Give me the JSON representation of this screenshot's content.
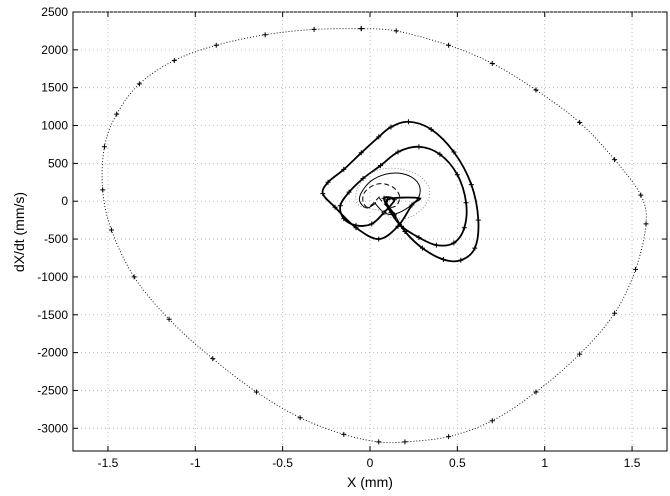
{
  "chart_data": {
    "type": "line",
    "title": "",
    "xlabel": "X (mm)",
    "ylabel": "dX/dt  (mm/s)",
    "xlim": [
      -1.7,
      1.7
    ],
    "ylim": [
      -3300,
      2500
    ],
    "xticks": [
      -1.5,
      -1,
      -0.5,
      0,
      0.5,
      1,
      1.5
    ],
    "xtick_labels": [
      "-1.5",
      "-1",
      "-0.5",
      "0",
      "0.5",
      "1",
      "1.5"
    ],
    "yticks": [
      -3000,
      -2500,
      -2000,
      -1500,
      -1000,
      -500,
      0,
      500,
      1000,
      1500,
      2000,
      2500
    ],
    "ytick_labels": [
      "-3000",
      "-2500",
      "-2000",
      "-1500",
      "-1000",
      "-500",
      "0",
      "500",
      "1000",
      "1500",
      "2000",
      "2500"
    ],
    "grid": true,
    "legend": "none",
    "series": [
      {
        "style": "dotted-line-plus-markers",
        "x": [
          -0.05,
          0.15,
          0.45,
          0.7,
          0.95,
          1.2,
          1.4,
          1.55,
          1.58,
          1.52,
          1.4,
          1.2,
          0.95,
          0.7,
          0.45,
          0.2,
          0.05,
          -0.15,
          -0.4,
          -0.65,
          -0.9,
          -1.15,
          -1.35,
          -1.48,
          -1.53,
          -1.52,
          -1.45,
          -1.32,
          -1.12,
          -0.88,
          -0.6,
          -0.32,
          -0.05
        ],
        "y": [
          2280,
          2250,
          2060,
          1820,
          1470,
          1040,
          550,
          80,
          -300,
          -900,
          -1480,
          -2020,
          -2520,
          -2900,
          -3110,
          -3180,
          -3180,
          -3080,
          -2860,
          -2520,
          -2080,
          -1560,
          -1000,
          -380,
          150,
          720,
          1150,
          1550,
          1860,
          2060,
          2200,
          2270,
          2280
        ]
      },
      {
        "style": "solid-line-plus-markers",
        "x": [
          0.1,
          0.14,
          0.2,
          0.3,
          0.42,
          0.52,
          0.6,
          0.62,
          0.58,
          0.48,
          0.35,
          0.22,
          0.12,
          0.05,
          -0.05,
          -0.15,
          -0.24,
          -0.27,
          -0.2,
          -0.08,
          0.05,
          0.16,
          0.24,
          0.28
        ],
        "y": [
          20,
          -180,
          -400,
          -620,
          -770,
          -780,
          -620,
          -250,
          220,
          650,
          950,
          1050,
          980,
          850,
          640,
          420,
          250,
          100,
          -80,
          -350,
          -500,
          -330,
          -50,
          40
        ]
      },
      {
        "style": "solid-line-plus-markers",
        "x": [
          0.08,
          0.12,
          0.18,
          0.28,
          0.38,
          0.48,
          0.54,
          0.55,
          0.5,
          0.4,
          0.28,
          0.16,
          0.06,
          -0.04,
          -0.12,
          -0.17,
          -0.15,
          -0.08,
          0.01,
          0.08,
          0.14
        ],
        "y": [
          40,
          -150,
          -330,
          -480,
          -580,
          -550,
          -350,
          -20,
          350,
          620,
          720,
          650,
          470,
          300,
          120,
          -60,
          -230,
          -320,
          -300,
          -150,
          20
        ]
      },
      {
        "style": "dashed-line",
        "x": [
          0.05,
          0.1,
          0.15,
          0.17,
          0.14,
          0.08,
          0.02,
          -0.03,
          -0.04,
          -0.01,
          0.05
        ],
        "y": [
          50,
          -70,
          -60,
          60,
          170,
          230,
          210,
          120,
          0,
          -80,
          50
        ]
      },
      {
        "style": "thin-solid-line",
        "x": [
          0.03,
          0.08,
          0.14,
          0.22,
          0.28,
          0.28,
          0.22,
          0.12,
          0.02,
          -0.04,
          -0.06,
          -0.02,
          0.03
        ],
        "y": [
          -30,
          -150,
          -170,
          -80,
          60,
          220,
          340,
          370,
          290,
          150,
          10,
          -90,
          -30
        ]
      },
      {
        "style": "light-dotted-line",
        "x": [
          0.06,
          0.14,
          0.24,
          0.32,
          0.34,
          0.28,
          0.16,
          0.04,
          -0.04,
          -0.08,
          -0.06,
          0.06
        ],
        "y": [
          -120,
          -230,
          -200,
          -40,
          160,
          340,
          430,
          410,
          280,
          100,
          -60,
          -120
        ]
      }
    ]
  }
}
